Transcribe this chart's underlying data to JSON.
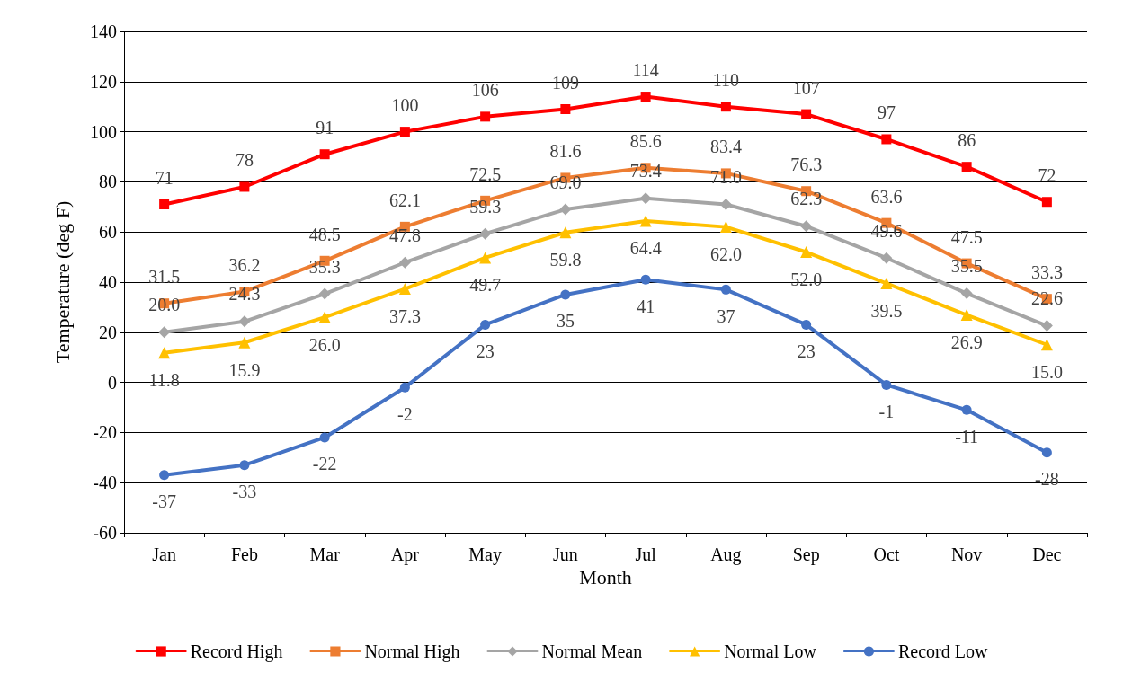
{
  "chart_data": {
    "type": "line",
    "xlabel": "Month",
    "ylabel": "Temperature (deg F)",
    "categories": [
      "Jan",
      "Feb",
      "Mar",
      "Apr",
      "May",
      "Jun",
      "Jul",
      "Aug",
      "Sep",
      "Oct",
      "Nov",
      "Dec"
    ],
    "series": [
      {
        "name": "Record High",
        "color": "#ff0000",
        "marker": "square",
        "values": [
          71,
          78,
          91,
          100,
          106,
          109,
          114,
          110,
          107,
          97,
          86,
          72
        ],
        "value_labels": [
          "71",
          "78",
          "91",
          "100",
          "106",
          "109",
          "114",
          "110",
          "107",
          "97",
          "86",
          "72"
        ]
      },
      {
        "name": "Normal High",
        "color": "#ed7d31",
        "marker": "square",
        "values": [
          31.5,
          36.2,
          48.5,
          62.1,
          72.5,
          81.6,
          85.6,
          83.4,
          76.3,
          63.6,
          47.5,
          33.3
        ],
        "value_labels": [
          "31.5",
          "36.2",
          "48.5",
          "62.1",
          "72.5",
          "81.6",
          "85.6",
          "83.4",
          "76.3",
          "63.6",
          "47.5",
          "33.3"
        ]
      },
      {
        "name": "Normal Mean",
        "color": "#a5a5a5",
        "marker": "diamond",
        "values": [
          20.0,
          24.3,
          35.3,
          47.8,
          59.3,
          69.0,
          73.4,
          71.0,
          62.3,
          49.6,
          35.5,
          22.6
        ],
        "value_labels": [
          "20.0",
          "24.3",
          "35.3",
          "47.8",
          "59.3",
          "69.0",
          "73.4",
          "71.0",
          "62.3",
          "49.6",
          "35.5",
          "22.6"
        ]
      },
      {
        "name": "Normal Low",
        "color": "#ffc000",
        "marker": "triangle",
        "values": [
          11.8,
          15.9,
          26.0,
          37.3,
          49.7,
          59.8,
          64.4,
          62.0,
          52.0,
          39.5,
          26.9,
          15.0
        ],
        "value_labels": [
          "11.8",
          "15.9",
          "26.0",
          "37.3",
          "49.7",
          "59.8",
          "64.4",
          "62.0",
          "52.0",
          "39.5",
          "26.9",
          "15.0"
        ]
      },
      {
        "name": "Record Low",
        "color": "#4472c4",
        "marker": "circle",
        "values": [
          -37,
          -33,
          -22,
          -2,
          23,
          35,
          41,
          37,
          23,
          -1,
          -11,
          -28
        ],
        "value_labels": [
          "-37",
          "-33",
          "-22",
          "-2",
          "23",
          "35",
          "41",
          "37",
          "23",
          "-1",
          "-11",
          "-28"
        ]
      }
    ],
    "ylim": [
      -60,
      140
    ],
    "yticks": [
      -60,
      -40,
      -20,
      0,
      20,
      40,
      60,
      80,
      100,
      120,
      140
    ],
    "grid": "y",
    "legend": "bottom",
    "line_style": "solid"
  }
}
